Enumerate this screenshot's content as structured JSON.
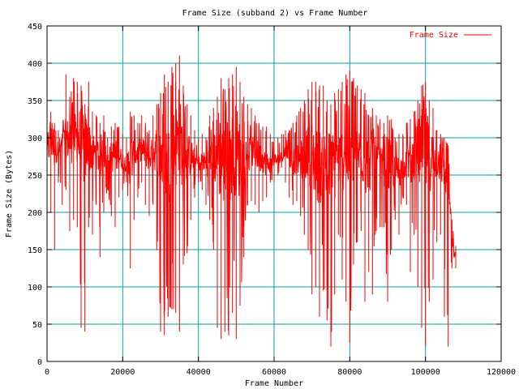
{
  "chart_data": {
    "type": "line",
    "title": "Frame Size (subband 2) vs Frame Number",
    "xlabel": "Frame Number",
    "ylabel": "Frame Size (Bytes)",
    "xlim": [
      0,
      120000
    ],
    "ylim": [
      0,
      450
    ],
    "x_ticks": [
      0,
      20000,
      40000,
      60000,
      80000,
      100000,
      120000
    ],
    "y_ticks": [
      0,
      50,
      100,
      150,
      200,
      250,
      300,
      350,
      400,
      450
    ],
    "x_tick_labels": [
      "0",
      "20000",
      "40000",
      "60000",
      "80000",
      "100000",
      "120000"
    ],
    "y_tick_labels": [
      "0",
      "50",
      "100",
      "150",
      "200",
      "250",
      "300",
      "350",
      "400",
      "450"
    ],
    "grid": true,
    "legend_position": "top-right",
    "series": [
      {
        "name": "Frame Size",
        "color": "#ff0000",
        "x": [
          0,
          1000,
          2000,
          3000,
          4000,
          5000,
          6000,
          7000,
          8000,
          9000,
          10000,
          11000,
          12000,
          13000,
          14000,
          15000,
          16000,
          17000,
          18000,
          19000,
          20000,
          21000,
          22000,
          23000,
          24000,
          25000,
          26000,
          27000,
          28000,
          29000,
          30000,
          31000,
          32000,
          33000,
          34000,
          35000,
          36000,
          37000,
          38000,
          39000,
          40000,
          41000,
          42000,
          43000,
          44000,
          45000,
          46000,
          47000,
          48000,
          49000,
          50000,
          51000,
          52000,
          53000,
          54000,
          55000,
          56000,
          57000,
          58000,
          59000,
          60000,
          61000,
          62000,
          63000,
          64000,
          65000,
          66000,
          67000,
          68000,
          69000,
          70000,
          71000,
          72000,
          73000,
          74000,
          75000,
          76000,
          77000,
          78000,
          79000,
          80000,
          81000,
          82000,
          83000,
          84000,
          85000,
          86000,
          87000,
          88000,
          89000,
          90000,
          91000,
          92000,
          93000,
          94000,
          95000,
          96000,
          97000,
          98000,
          99000,
          100000,
          101000,
          102000,
          103000,
          104000,
          105000,
          106000,
          107000,
          108000
        ],
        "upper": [
          300,
          335,
          320,
          310,
          305,
          385,
          355,
          380,
          375,
          370,
          345,
          375,
          335,
          330,
          320,
          330,
          300,
          315,
          320,
          315,
          305,
          300,
          335,
          330,
          320,
          330,
          320,
          310,
          330,
          345,
          360,
          385,
          375,
          395,
          400,
          410,
          370,
          345,
          330,
          310,
          300,
          305,
          300,
          330,
          340,
          355,
          380,
          365,
          380,
          385,
          395,
          375,
          355,
          345,
          340,
          330,
          320,
          315,
          315,
          305,
          300,
          300,
          305,
          310,
          310,
          320,
          330,
          340,
          350,
          365,
          375,
          375,
          370,
          370,
          350,
          345,
          360,
          365,
          375,
          385,
          390,
          380,
          370,
          365,
          360,
          330,
          340,
          330,
          325,
          320,
          330,
          325,
          300,
          305,
          305,
          320,
          325,
          335,
          350,
          370,
          375,
          350,
          340,
          310,
          305,
          300,
          290,
          190,
          155
        ],
        "lower": [
          180,
          200,
          150,
          240,
          210,
          230,
          175,
          190,
          180,
          45,
          40,
          180,
          170,
          210,
          140,
          200,
          230,
          195,
          180,
          220,
          230,
          240,
          125,
          190,
          220,
          240,
          210,
          195,
          210,
          150,
          40,
          35,
          60,
          70,
          65,
          40,
          130,
          145,
          190,
          220,
          240,
          230,
          210,
          190,
          150,
          45,
          30,
          40,
          35,
          65,
          30,
          75,
          140,
          210,
          215,
          210,
          200,
          215,
          220,
          240,
          240,
          250,
          260,
          240,
          220,
          210,
          215,
          195,
          170,
          150,
          90,
          100,
          60,
          95,
          55,
          20,
          90,
          170,
          110,
          80,
          25,
          130,
          160,
          175,
          80,
          120,
          90,
          175,
          180,
          180,
          80,
          150,
          190,
          170,
          220,
          210,
          120,
          170,
          100,
          45,
          20,
          80,
          110,
          160,
          170,
          60,
          20,
          125,
          125
        ],
        "center": [
          280,
          295,
          290,
          285,
          290,
          300,
          295,
          300,
          300,
          290,
          285,
          290,
          280,
          280,
          275,
          280,
          270,
          275,
          275,
          275,
          270,
          265,
          270,
          275,
          280,
          285,
          280,
          275,
          280,
          285,
          280,
          280,
          260,
          280,
          290,
          295,
          280,
          275,
          275,
          270,
          265,
          270,
          265,
          270,
          275,
          280,
          275,
          260,
          270,
          280,
          285,
          270,
          270,
          275,
          280,
          280,
          275,
          270,
          265,
          265,
          270,
          270,
          275,
          280,
          275,
          270,
          270,
          270,
          275,
          280,
          275,
          265,
          260,
          265,
          260,
          255,
          260,
          270,
          275,
          280,
          285,
          280,
          280,
          280,
          270,
          265,
          270,
          265,
          265,
          260,
          265,
          260,
          255,
          255,
          260,
          265,
          270,
          275,
          280,
          285,
          285,
          275,
          270,
          270,
          265,
          265,
          260,
          160,
          135
        ]
      }
    ]
  }
}
